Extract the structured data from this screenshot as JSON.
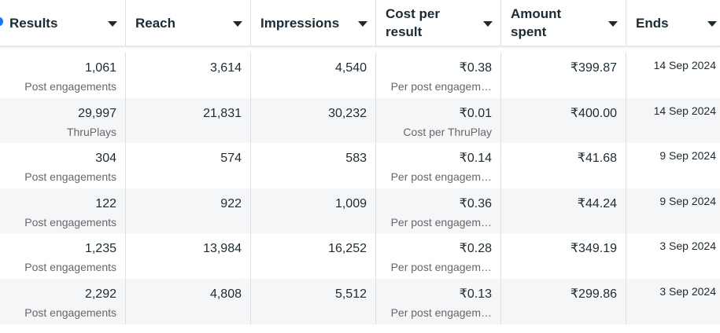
{
  "table": {
    "headers": [
      "Results",
      "Reach",
      "Impressions",
      "Cost per result",
      "Amount spent",
      "Ends"
    ],
    "rows": [
      {
        "results": "1,061",
        "results_label": "Post engagements",
        "reach": "3,614",
        "impressions": "4,540",
        "cost": "₹0.38",
        "cost_label": "Per post engagem…",
        "amount": "₹399.87",
        "ends": "14 Sep 2024"
      },
      {
        "results": "29,997",
        "results_label": "ThruPlays",
        "reach": "21,831",
        "impressions": "30,232",
        "cost": "₹0.01",
        "cost_label": "Cost per ThruPlay",
        "amount": "₹400.00",
        "ends": "14 Sep 2024"
      },
      {
        "results": "304",
        "results_label": "Post engagements",
        "reach": "574",
        "impressions": "583",
        "cost": "₹0.14",
        "cost_label": "Per post engagem…",
        "amount": "₹41.68",
        "ends": "9 Sep 2024"
      },
      {
        "results": "122",
        "results_label": "Post engagements",
        "reach": "922",
        "impressions": "1,009",
        "cost": "₹0.36",
        "cost_label": "Per post engagem…",
        "amount": "₹44.24",
        "ends": "9 Sep 2024"
      },
      {
        "results": "1,235",
        "results_label": "Post engagements",
        "reach": "13,984",
        "impressions": "16,252",
        "cost": "₹0.28",
        "cost_label": "Per post engagem…",
        "amount": "₹349.19",
        "ends": "3 Sep 2024"
      },
      {
        "results": "2,292",
        "results_label": "Post engagements",
        "reach": "4,808",
        "impressions": "5,512",
        "cost": "₹0.13",
        "cost_label": "Per post engagem…",
        "amount": "₹299.86",
        "ends": "3 Sep 2024"
      }
    ]
  }
}
